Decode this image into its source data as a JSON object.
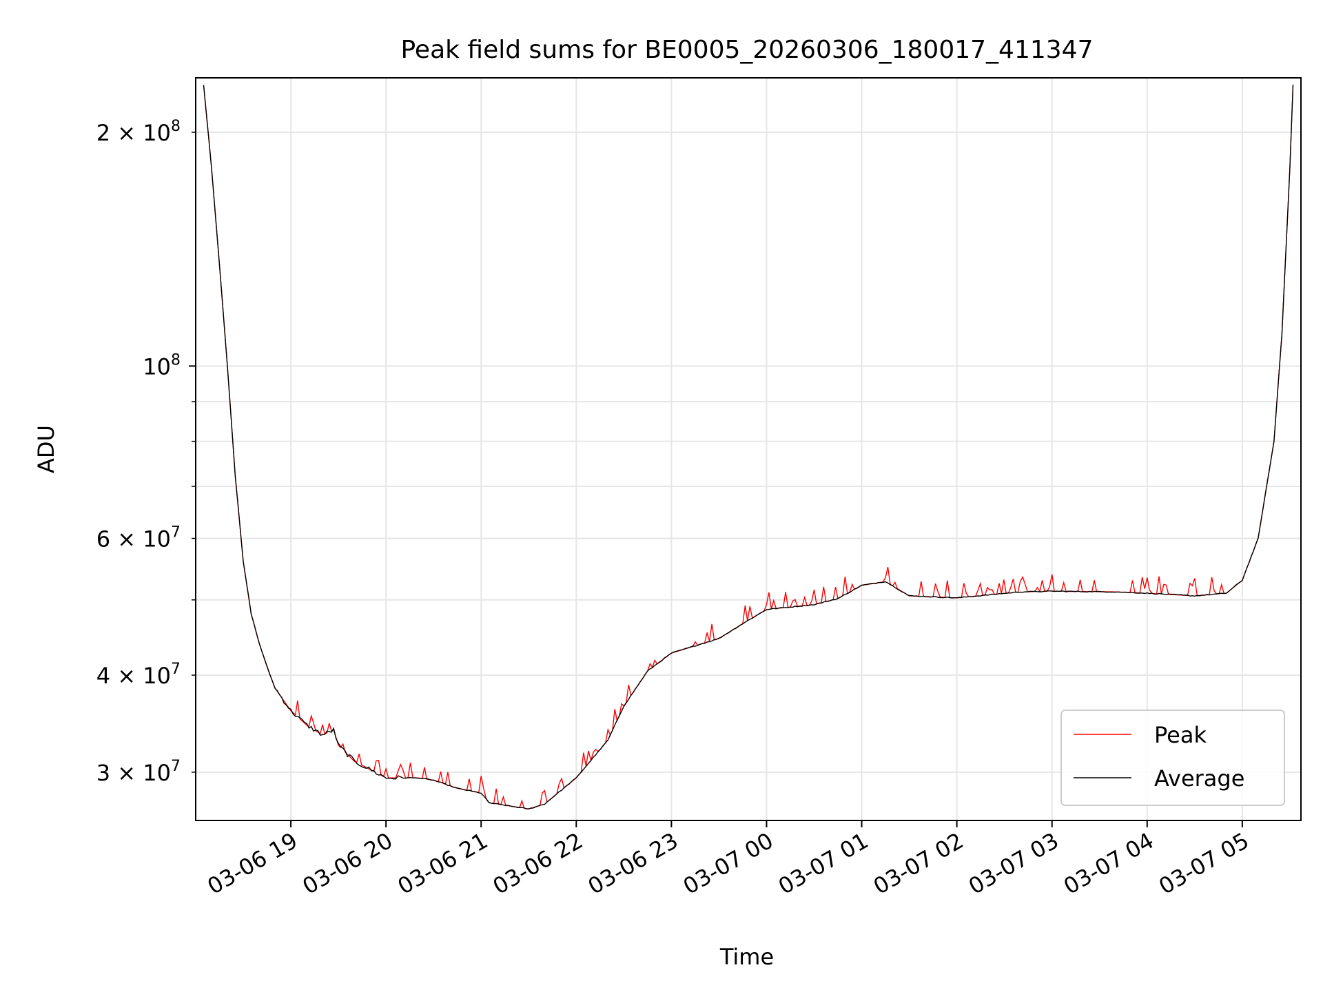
{
  "chart_data": {
    "type": "line",
    "title": "Peak field sums for BE0005_20260306_180017_411347",
    "xlabel": "Time",
    "ylabel": "ADU",
    "x_ticks": [
      "03-06 19",
      "03-06 20",
      "03-06 21",
      "03-06 22",
      "03-06 23",
      "03-07 00",
      "03-07 01",
      "03-07 02",
      "03-07 03",
      "03-07 04",
      "03-07 05"
    ],
    "xlim": [
      "03-06 18:00",
      "03-07 05:37"
    ],
    "y_scale": "log",
    "ylim": [
      26000000,
      235000000
    ],
    "y_ticks_major": [
      {
        "value": 100000000,
        "base": "10",
        "exp": "8"
      }
    ],
    "y_ticks_minor_labeled": [
      {
        "value": 30000000,
        "mant": "3",
        "base": "10",
        "exp": "7"
      },
      {
        "value": 40000000,
        "mant": "4",
        "base": "10",
        "exp": "7"
      },
      {
        "value": 60000000,
        "mant": "6",
        "base": "10",
        "exp": "7"
      },
      {
        "value": 200000000,
        "mant": "2",
        "base": "10",
        "exp": "8"
      }
    ],
    "y_ticks_minor_unlabeled": [
      50000000,
      70000000,
      80000000,
      90000000
    ],
    "grid": true,
    "legend_position": "lower-right",
    "series": [
      {
        "name": "Peak",
        "color": "#ff0000",
        "spikes": "frequent upward spikes of up to about 2-5% above the average",
        "x": [
          "03-06 18:05",
          "03-06 18:10",
          "03-06 18:15",
          "03-06 18:20",
          "03-06 18:25",
          "03-06 18:30",
          "03-06 18:35",
          "03-06 18:40",
          "03-06 18:45",
          "03-06 18:50",
          "03-06 19:00",
          "03-06 19:10",
          "03-06 19:20",
          "03-06 19:27",
          "03-06 19:30",
          "03-06 19:40",
          "03-06 20:00",
          "03-06 20:20",
          "03-06 20:30",
          "03-06 20:45",
          "03-06 21:00",
          "03-06 21:05",
          "03-06 21:20",
          "03-06 21:30",
          "03-06 21:40",
          "03-06 22:00",
          "03-06 22:20",
          "03-06 22:30",
          "03-06 22:45",
          "03-06 23:00",
          "03-06 23:30",
          "03-06 23:45",
          "03-07 00:00",
          "03-07 00:30",
          "03-07 00:45",
          "03-07 01:00",
          "03-07 01:15",
          "03-07 01:30",
          "03-07 02:00",
          "03-07 02:40",
          "03-07 03:00",
          "03-07 03:40",
          "03-07 04:00",
          "03-07 04:30",
          "03-07 04:50",
          "03-07 05:00",
          "03-07 05:10",
          "03-07 05:20",
          "03-07 05:25",
          "03-07 05:30",
          "03-07 05:32"
        ],
        "values": [
          230000000,
          180000000,
          135000000,
          100000000,
          72000000,
          56000000,
          48000000,
          44000000,
          41000000,
          38500000,
          36000000,
          34500000,
          33500000,
          34000000,
          32500000,
          31000000,
          29500000,
          29500000,
          29300000,
          28600000,
          28200000,
          27400000,
          27100000,
          26900000,
          27300000,
          29500000,
          33000000,
          36500000,
          40500000,
          42700000,
          44600000,
          46600000,
          48600000,
          49300000,
          50200000,
          52200000,
          52800000,
          50600000,
          50300000,
          51200000,
          51300000,
          51200000,
          51000000,
          50600000,
          51000000,
          53000000,
          60000000,
          80000000,
          110000000,
          180000000,
          230000000
        ]
      },
      {
        "name": "Average",
        "color": "#000000",
        "x": [
          "03-06 18:05",
          "03-06 18:10",
          "03-06 18:15",
          "03-06 18:20",
          "03-06 18:25",
          "03-06 18:30",
          "03-06 18:35",
          "03-06 18:40",
          "03-06 18:45",
          "03-06 18:50",
          "03-06 19:00",
          "03-06 19:10",
          "03-06 19:20",
          "03-06 19:27",
          "03-06 19:30",
          "03-06 19:40",
          "03-06 20:00",
          "03-06 20:20",
          "03-06 20:30",
          "03-06 20:45",
          "03-06 21:00",
          "03-06 21:05",
          "03-06 21:20",
          "03-06 21:30",
          "03-06 21:40",
          "03-06 22:00",
          "03-06 22:20",
          "03-06 22:30",
          "03-06 22:45",
          "03-06 23:00",
          "03-06 23:30",
          "03-06 23:45",
          "03-07 00:00",
          "03-07 00:30",
          "03-07 00:45",
          "03-07 01:00",
          "03-07 01:15",
          "03-07 01:30",
          "03-07 02:00",
          "03-07 02:40",
          "03-07 03:00",
          "03-07 03:40",
          "03-07 04:00",
          "03-07 04:30",
          "03-07 04:50",
          "03-07 05:00",
          "03-07 05:10",
          "03-07 05:20",
          "03-07 05:25",
          "03-07 05:30",
          "03-07 05:32"
        ],
        "values": [
          230000000,
          180000000,
          135000000,
          100000000,
          72000000,
          56000000,
          48000000,
          44000000,
          41000000,
          38500000,
          36000000,
          34500000,
          33500000,
          34000000,
          32500000,
          31000000,
          29500000,
          29500000,
          29300000,
          28600000,
          28200000,
          27400000,
          27100000,
          26900000,
          27300000,
          29500000,
          33000000,
          36500000,
          40500000,
          42700000,
          44600000,
          46600000,
          48600000,
          49300000,
          50200000,
          52200000,
          52800000,
          50600000,
          50300000,
          51200000,
          51300000,
          51200000,
          51000000,
          50600000,
          51000000,
          53000000,
          60000000,
          80000000,
          110000000,
          180000000,
          230000000
        ]
      }
    ]
  }
}
